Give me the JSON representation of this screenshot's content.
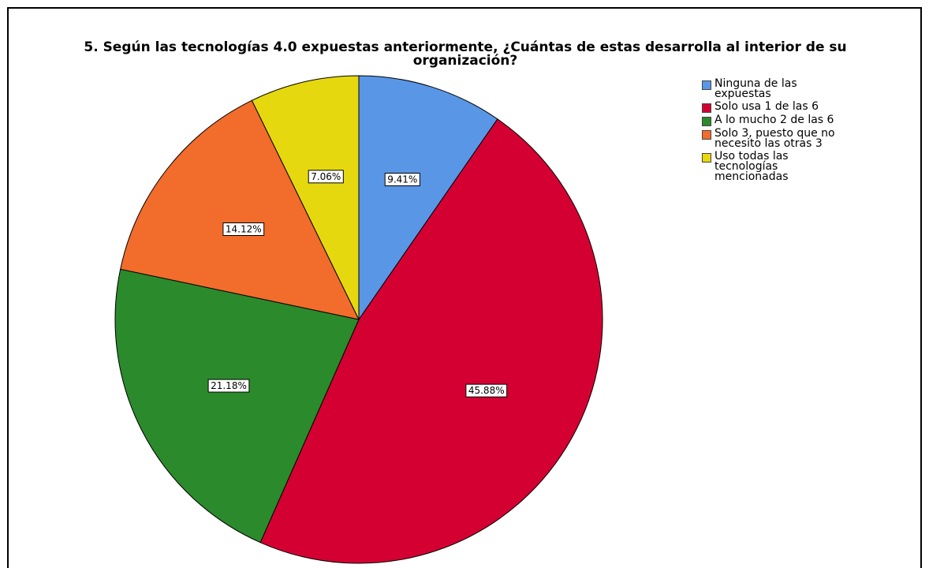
{
  "chart_data": {
    "type": "pie",
    "title": [
      "5. Según las tecnologías 4.0 expuestas anteriormente, ¿Cuántas de estas desarrolla al interior de su",
      "organización?"
    ],
    "categories": [
      "Ninguna de las expuestas",
      "Solo usa 1 de las 6",
      "A lo mucho 2 de las 6",
      "Solo 3, puesto que no necesito las otras 3",
      "Uso todas las tecnologías mencionadas"
    ],
    "values": [
      9.41,
      45.88,
      21.18,
      14.12,
      7.06
    ],
    "value_labels": [
      "9.41%",
      "45.88%",
      "21.18%",
      "14.12%",
      "7.06%"
    ],
    "colors": [
      "#5a96e6",
      "#d50032",
      "#2b8a2b",
      "#f26c2b",
      "#e6d80f"
    ],
    "legend": "top-right"
  }
}
